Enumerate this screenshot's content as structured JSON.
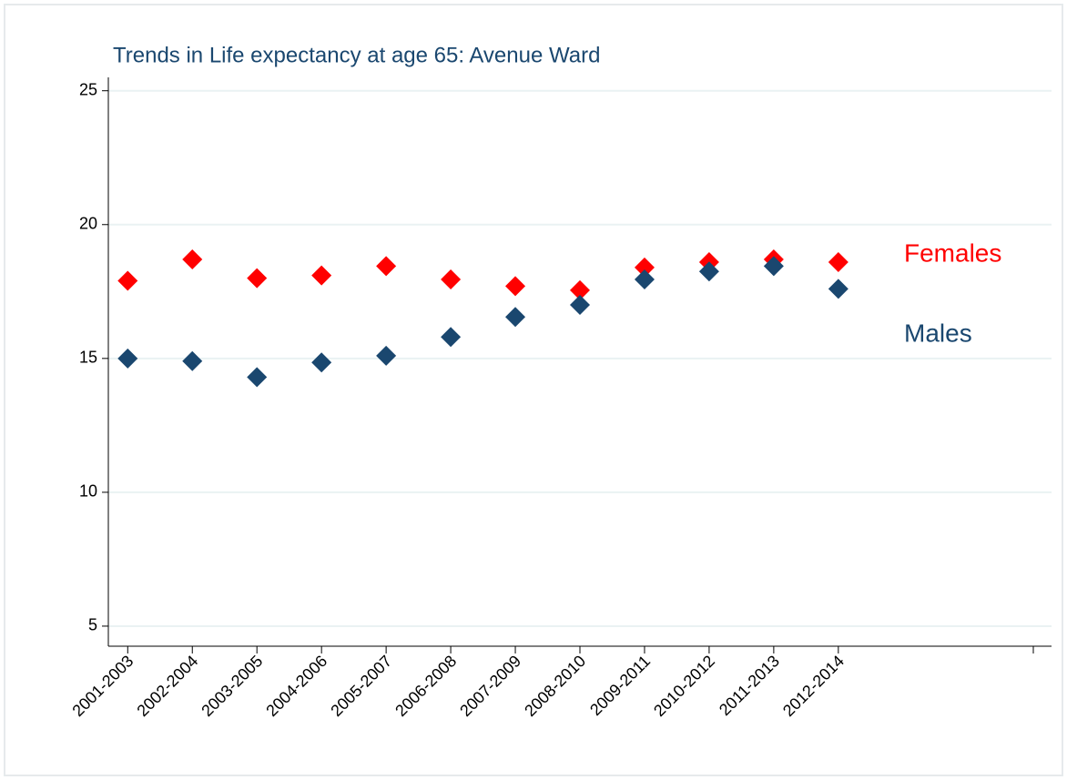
{
  "chart_data": {
    "type": "scatter",
    "title": "Trends in Life expectancy at age 65: Avenue Ward",
    "x": [
      1,
      2,
      3,
      4,
      5,
      6,
      7,
      8,
      9,
      10,
      11,
      12
    ],
    "series": [
      {
        "name": "Females",
        "color": "#ff0000",
        "values": [
          17.9,
          18.7,
          18.0,
          18.1,
          18.45,
          17.95,
          17.7,
          17.55,
          18.4,
          18.6,
          18.7,
          18.6
        ]
      },
      {
        "name": "Males",
        "color": "#1a476f",
        "values": [
          15.0,
          14.9,
          14.3,
          14.85,
          15.1,
          15.8,
          16.55,
          17.0,
          17.95,
          18.25,
          18.45,
          17.6
        ]
      }
    ],
    "xlim": [
      0.7,
      15.3
    ],
    "xticks": [
      {
        "value": 1,
        "label": "2001-2003"
      },
      {
        "value": 2,
        "label": "2002-2004"
      },
      {
        "value": 3,
        "label": "2003-2005"
      },
      {
        "value": 4,
        "label": "2004-2006"
      },
      {
        "value": 5,
        "label": "2005-2007"
      },
      {
        "value": 6,
        "label": "2006-2008"
      },
      {
        "value": 7,
        "label": "2007-2009"
      },
      {
        "value": 8,
        "label": "2008-2010"
      },
      {
        "value": 9,
        "label": "2009-2011"
      },
      {
        "value": 10,
        "label": "2010-2012"
      },
      {
        "value": 11,
        "label": "2011-2013"
      },
      {
        "value": 12,
        "label": "2012-2014"
      }
    ],
    "ylim": [
      4.25,
      25.5
    ],
    "yticks": [
      5,
      10,
      15,
      20,
      25
    ],
    "grid": true
  }
}
